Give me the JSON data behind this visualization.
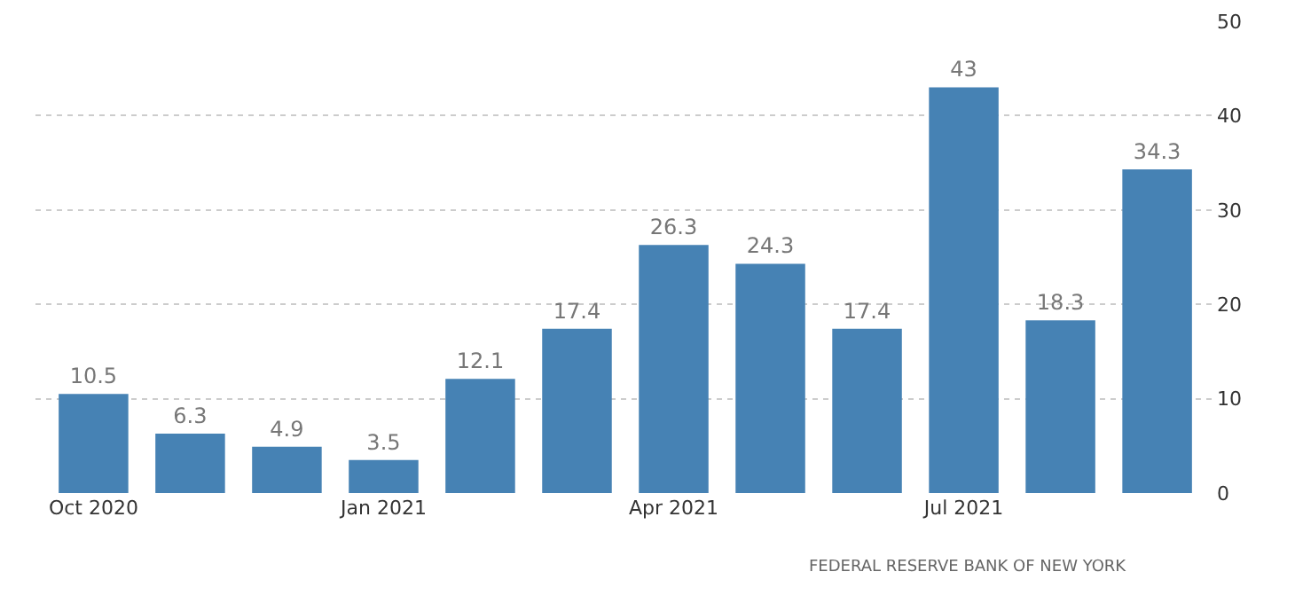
{
  "chart_data": {
    "type": "bar",
    "categories": [
      "Oct 2020",
      null,
      null,
      "Jan 2021",
      null,
      null,
      "Apr 2021",
      null,
      null,
      "Jul 2021",
      null,
      null
    ],
    "values": [
      10.5,
      6.3,
      4.9,
      3.5,
      12.1,
      17.4,
      26.3,
      24.3,
      17.4,
      43,
      18.3,
      34.3
    ],
    "color": "#4682b4",
    "ylim": [
      0,
      50
    ],
    "yticks": [
      0,
      10,
      20,
      30,
      40,
      50
    ],
    "grid": "y",
    "data_labels": true,
    "legend": false,
    "annotations": [
      "FEDERAL RESERVE BANK OF NEW YORK"
    ]
  }
}
